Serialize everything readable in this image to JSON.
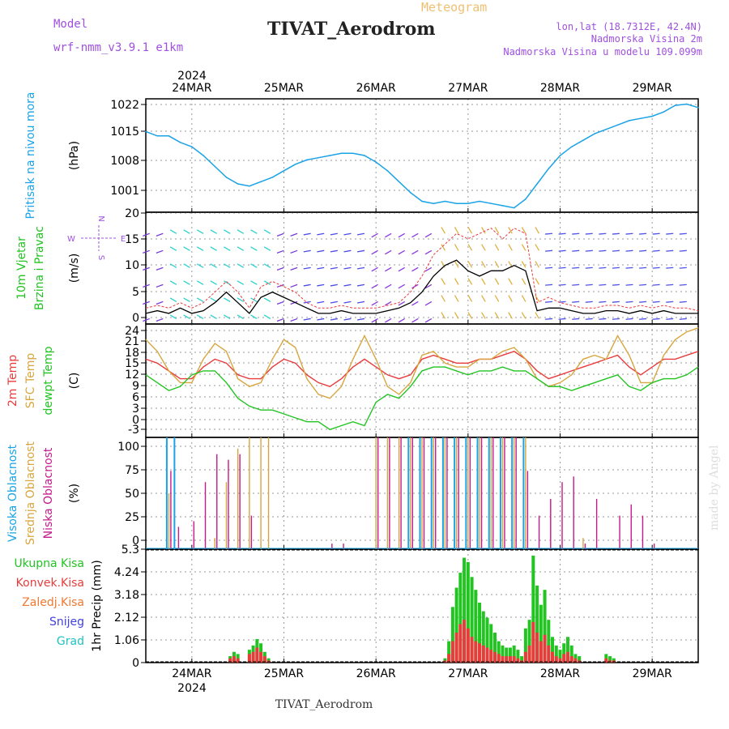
{
  "header": {
    "model_label": "Model",
    "model_name": "wrf-nmm_v3.9.1 e1km",
    "subtitle": "Meteogram",
    "station_title": "TIVAT_Aerodrom",
    "location": "lon,lat (18.7312E, 42.4N)",
    "station_height": "Nadmorska Visina 2m",
    "model_height": "Nadmorska Visina u modelu 109.099m",
    "footer_station": "TIVAT_Aerodrom",
    "credit": "made by Angel"
  },
  "time_axis": {
    "year": "2024",
    "days": [
      "24MAR",
      "25MAR",
      "26MAR",
      "27MAR",
      "28MAR",
      "29MAR"
    ],
    "day_offsets_h": [
      12,
      36,
      60,
      84,
      108,
      132
    ],
    "range_h": [
      0,
      144
    ]
  },
  "colors": {
    "pressure": "#1aa3e6",
    "temp2m": "#e83c3c",
    "sfc": "#d7a640",
    "dewpt": "#22c422",
    "high_cloud": "#1aa3e6",
    "mid_cloud": "#d7a640",
    "low_cloud": "#c41a8c",
    "total_precip": "#22c422",
    "conv_precip": "#e83c3c",
    "grid": "#9a9a9a",
    "wind_speed": "#000000",
    "wind_gust": "#e83c3c",
    "precip_axis_label": "#000000",
    "wind_label": "#22c422"
  },
  "panels": {
    "pressure": {
      "labels": [
        {
          "text": "Pritisak na nivou mora",
          "color": "#1aa3e6"
        }
      ],
      "unit": "(hPa)",
      "ticks": [
        "1001",
        "1008",
        "1015",
        "1022"
      ],
      "ylim": [
        997,
        1023
      ]
    },
    "wind": {
      "labels": [
        {
          "text": "10m Vjetar",
          "color": "#22c422"
        },
        {
          "text": "Brzina i Pravac",
          "color": "#22c422"
        }
      ],
      "unit": "(m/s)",
      "ticks": [
        "0",
        "5",
        "10",
        "15",
        "20"
      ],
      "ylim": [
        -1,
        20
      ],
      "compass": {
        "n": "N",
        "s": "S",
        "e": "E",
        "w": "W"
      }
    },
    "temperature": {
      "labels": [
        {
          "text": "2m Temp",
          "color": "#e83c3c"
        },
        {
          "text": "SFC Temp",
          "color": "#d7a640"
        },
        {
          "text": "dewpt Temp",
          "color": "#22c422"
        }
      ],
      "unit": "(C)",
      "ticks": [
        "-3",
        "0",
        "3",
        "6",
        "9",
        "12",
        "15",
        "18",
        "21",
        "24"
      ],
      "ylim": [
        -5,
        24
      ]
    },
    "cloud": {
      "labels": [
        {
          "text": "Visoka Oblacnost",
          "color": "#1aa3e6"
        },
        {
          "text": "Srednja Oblacnost",
          "color": "#d7a640"
        },
        {
          "text": "Niska Oblacnost",
          "color": "#c41a8c"
        }
      ],
      "unit": "(%)",
      "ticks": [
        "0",
        "25",
        "50",
        "75",
        "100"
      ],
      "ylim": [
        0,
        100
      ]
    },
    "precip": {
      "legend": [
        {
          "text": "Ukupna Kisa",
          "color": "#22c422"
        },
        {
          "text": "Konvek.Kisa",
          "color": "#e83c3c"
        },
        {
          "text": "Zaledj.Kisa",
          "color": "#f07830"
        },
        {
          "text": "Snijeg",
          "color": "#4040e0"
        },
        {
          "text": "Grad",
          "color": "#20c0c0"
        }
      ],
      "unit": "1hr Precip (mm)",
      "ticks": [
        "0",
        "1.06",
        "2.12",
        "3.18",
        "4.24",
        "5.3"
      ],
      "ylim": [
        0,
        5.3
      ]
    }
  },
  "chart_data": [
    {
      "type": "line",
      "name": "Pritisak na nivou mora",
      "x_hours": [
        0,
        3,
        6,
        9,
        12,
        15,
        18,
        21,
        24,
        27,
        30,
        33,
        36,
        39,
        42,
        45,
        48,
        51,
        54,
        57,
        60,
        63,
        66,
        69,
        72,
        75,
        78,
        81,
        84,
        87,
        90,
        93,
        96,
        99,
        102,
        105,
        108,
        111,
        114,
        117,
        120,
        123,
        126,
        129,
        132,
        135,
        138,
        141,
        144
      ],
      "values": [
        1015.5,
        1014.5,
        1014.5,
        1013.0,
        1012.0,
        1010.0,
        1007.5,
        1005.0,
        1003.5,
        1003.0,
        1004.0,
        1005.0,
        1006.5,
        1008.0,
        1009.0,
        1009.5,
        1010.0,
        1010.5,
        1010.5,
        1010.0,
        1008.5,
        1006.5,
        1004.0,
        1001.5,
        999.5,
        999.0,
        999.5,
        999.0,
        999.0,
        999.5,
        999.0,
        998.5,
        998.0,
        1000.0,
        1003.5,
        1007.0,
        1010.0,
        1012.0,
        1013.5,
        1015.0,
        1016.0,
        1017.0,
        1018.0,
        1018.5,
        1019.0,
        1020.0,
        1021.5,
        1021.8,
        1021.0
      ],
      "ylim": [
        997,
        1023
      ]
    },
    {
      "type": "line",
      "name": "10m Vjetar Brzina i Pravac",
      "x_hours": [
        0,
        3,
        6,
        9,
        12,
        15,
        18,
        21,
        24,
        27,
        30,
        33,
        36,
        39,
        42,
        45,
        48,
        51,
        54,
        57,
        60,
        63,
        66,
        69,
        72,
        75,
        78,
        81,
        84,
        87,
        90,
        93,
        96,
        99,
        102,
        105,
        108,
        111,
        114,
        117,
        120,
        123,
        126,
        129,
        132,
        135,
        138,
        141,
        144
      ],
      "series": [
        {
          "values": [
            1,
            1.5,
            1,
            2,
            1,
            1.5,
            3,
            5,
            3,
            1,
            4,
            5,
            4,
            3,
            2,
            1,
            1,
            1.5,
            1,
            1,
            1,
            1.5,
            2,
            3,
            5,
            8,
            10,
            11,
            9,
            8,
            9,
            9,
            10,
            9,
            1.5,
            2,
            2,
            1.5,
            1,
            1,
            1.5,
            1.5,
            1,
            1.5,
            1,
            1.5,
            1,
            1,
            1
          ]
        },
        {
          "values": [
            2,
            2.5,
            2,
            3,
            2,
            3,
            5,
            7,
            5,
            2,
            6,
            7,
            6,
            5,
            3,
            2,
            2,
            2.5,
            2,
            2,
            2,
            2.5,
            3,
            5,
            8,
            12,
            14,
            16,
            15,
            16,
            17,
            15,
            17,
            16,
            3,
            4,
            3,
            2.5,
            2,
            2,
            2.5,
            2.5,
            2,
            2.5,
            2,
            2.5,
            2,
            2,
            1.5
          ]
        }
      ],
      "ylim": [
        -1,
        20
      ]
    },
    {
      "type": "line",
      "name": "Temperature",
      "x_hours": [
        0,
        3,
        6,
        9,
        12,
        15,
        18,
        21,
        24,
        27,
        30,
        33,
        36,
        39,
        42,
        45,
        48,
        51,
        54,
        57,
        60,
        63,
        66,
        69,
        72,
        75,
        78,
        81,
        84,
        87,
        90,
        93,
        96,
        99,
        102,
        105,
        108,
        111,
        114,
        117,
        120,
        123,
        126,
        129,
        132,
        135,
        138,
        141,
        144
      ],
      "series": [
        {
          "name": "2m Temp",
          "values": [
            15,
            14,
            12,
            10,
            10,
            13,
            15,
            14,
            11,
            10,
            10,
            13,
            15,
            14,
            11,
            9,
            8,
            10,
            13,
            15,
            13,
            11,
            10,
            11,
            15,
            16,
            15,
            14,
            14,
            15,
            15,
            16,
            17,
            15,
            12,
            10,
            11,
            12,
            13,
            14,
            15,
            16,
            13,
            11,
            13,
            15,
            15,
            16,
            17
          ]
        },
        {
          "name": "SFC Temp",
          "values": [
            20,
            17,
            12,
            9,
            9,
            15,
            19,
            17,
            10,
            8,
            9,
            15,
            20,
            18,
            10,
            6,
            5,
            8,
            15,
            21,
            15,
            8,
            6,
            9,
            16,
            17,
            14,
            13,
            13,
            15,
            15,
            17,
            18,
            15,
            10,
            8,
            9,
            11,
            15,
            16,
            15,
            21,
            16,
            9,
            9,
            16,
            20,
            22,
            23
          ]
        },
        {
          "name": "dewpt Temp",
          "values": [
            11,
            9,
            7,
            8,
            11,
            12,
            12,
            9,
            5,
            3,
            2,
            2,
            1,
            0,
            -1,
            -1,
            -3,
            -2,
            -1,
            -2,
            4,
            6,
            5,
            8,
            12,
            13,
            13,
            12,
            11,
            12,
            12,
            13,
            12,
            12,
            10,
            8,
            8,
            7,
            8,
            9,
            10,
            11,
            8,
            7,
            9,
            10,
            10,
            11,
            13
          ]
        }
      ],
      "ylim": [
        -5,
        24
      ]
    },
    {
      "type": "bar",
      "name": "Oblacnost",
      "x_hours": [
        6,
        8,
        12,
        15,
        18,
        21,
        24,
        27,
        30,
        32,
        48,
        51,
        54,
        57,
        60,
        63,
        66,
        69,
        72,
        75,
        78,
        81,
        84,
        87,
        90,
        93,
        96,
        99,
        102,
        105,
        108,
        111,
        114,
        117,
        120,
        123,
        126,
        129,
        132
      ],
      "series": [
        {
          "name": "Visoka Oblacnost",
          "values": [
            100,
            100,
            0,
            0,
            0,
            0,
            0,
            0,
            0,
            0,
            0,
            0,
            0,
            0,
            0,
            0,
            0,
            100,
            100,
            100,
            100,
            100,
            100,
            100,
            100,
            100,
            100,
            100,
            0,
            0,
            0,
            0,
            0,
            0,
            0,
            0,
            0,
            0,
            0
          ]
        },
        {
          "name": "Srednja Oblacnost",
          "values": [
            50,
            0,
            0,
            0,
            10,
            60,
            90,
            100,
            100,
            100,
            0,
            0,
            0,
            0,
            100,
            100,
            100,
            100,
            100,
            100,
            100,
            100,
            100,
            100,
            100,
            100,
            100,
            100,
            0,
            0,
            0,
            0,
            10,
            0,
            0,
            0,
            0,
            0,
            0
          ]
        },
        {
          "name": "Niska Oblacnost",
          "values": [
            70,
            20,
            25,
            60,
            85,
            80,
            85,
            30,
            0,
            0,
            5,
            5,
            0,
            0,
            100,
            100,
            100,
            100,
            100,
            100,
            100,
            100,
            100,
            100,
            100,
            100,
            100,
            70,
            30,
            45,
            60,
            65,
            5,
            45,
            0,
            30,
            40,
            30,
            5
          ]
        }
      ],
      "ylim": [
        0,
        100
      ]
    },
    {
      "type": "bar",
      "name": "1hr Precip",
      "x_hours": [
        22,
        23,
        24,
        27,
        28,
        29,
        30,
        31,
        32,
        78,
        79,
        80,
        81,
        82,
        83,
        84,
        85,
        86,
        87,
        88,
        89,
        90,
        91,
        92,
        93,
        94,
        95,
        96,
        97,
        98,
        99,
        100,
        101,
        102,
        103,
        104,
        105,
        106,
        107,
        108,
        109,
        110,
        111,
        112,
        113,
        120,
        121,
        122
      ],
      "series": [
        {
          "name": "Ukupna Kisa",
          "values": [
            0.3,
            0.5,
            0.4,
            0.6,
            0.8,
            1.1,
            0.9,
            0.5,
            0.2,
            0.2,
            1.0,
            2.6,
            3.5,
            4.2,
            4.9,
            4.7,
            4.0,
            3.4,
            2.8,
            2.4,
            2.1,
            1.8,
            1.4,
            1.0,
            0.8,
            0.7,
            0.7,
            0.8,
            0.6,
            0.3,
            1.6,
            2.0,
            5.0,
            3.6,
            2.7,
            3.4,
            2.0,
            1.2,
            0.8,
            0.6,
            0.9,
            1.2,
            0.8,
            0.4,
            0.3,
            0.4,
            0.3,
            0.2
          ]
        },
        {
          "name": "Konvek.Kisa",
          "values": [
            0.2,
            0.3,
            0.2,
            0.4,
            0.5,
            0.7,
            0.5,
            0.3,
            0.1,
            0.1,
            0.4,
            1.0,
            1.4,
            1.8,
            2.0,
            1.6,
            1.2,
            1.0,
            0.9,
            0.8,
            0.7,
            0.6,
            0.5,
            0.4,
            0.3,
            0.3,
            0.3,
            0.3,
            0.2,
            0.1,
            0.5,
            0.8,
            1.9,
            1.4,
            1.0,
            1.3,
            0.8,
            0.5,
            0.3,
            0.2,
            0.4,
            0.5,
            0.3,
            0.2,
            0.1,
            0.2,
            0.1,
            0.1
          ]
        }
      ],
      "ylim": [
        0,
        5.3
      ]
    }
  ]
}
